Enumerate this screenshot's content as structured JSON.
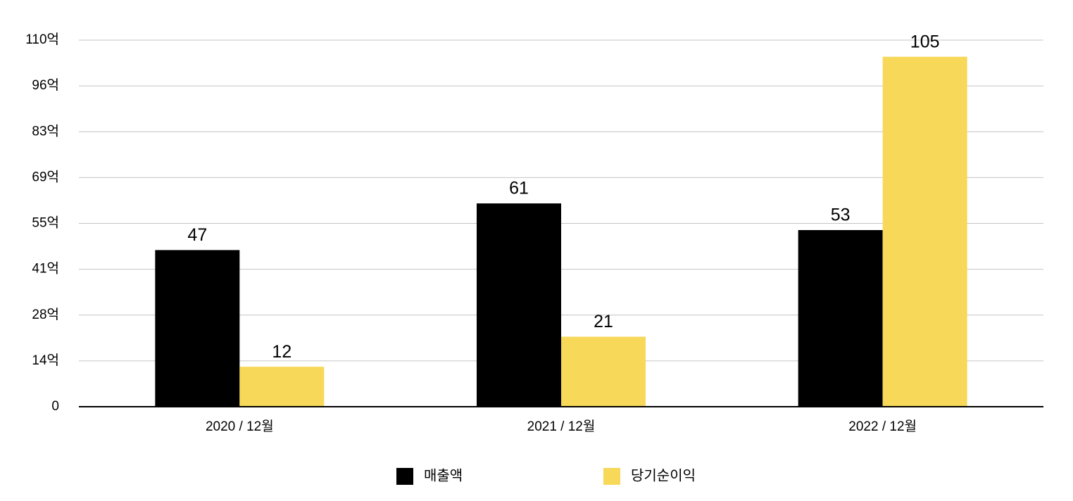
{
  "chart_data": {
    "type": "bar",
    "categories": [
      "2020 / 12월",
      "2021 / 12월",
      "2022 / 12월"
    ],
    "series": [
      {
        "name": "매출액",
        "color": "#000000",
        "values": [
          47,
          61,
          53
        ]
      },
      {
        "name": "당기순이익",
        "color": "#f7d858",
        "values": [
          12,
          21,
          105
        ]
      }
    ],
    "ylim": [
      0,
      110
    ],
    "yticks": [
      0,
      {
        "value": 13.75,
        "label": "14억"
      },
      {
        "value": 27.5,
        "label": "28억"
      },
      {
        "value": 41.25,
        "label": "41억"
      },
      {
        "value": 55,
        "label": "55억"
      },
      {
        "value": 68.75,
        "label": "69억"
      },
      {
        "value": 82.5,
        "label": "83억"
      },
      {
        "value": 96.25,
        "label": "96억"
      },
      {
        "value": 110,
        "label": "110억"
      }
    ],
    "grid": true,
    "legend": "bottom"
  }
}
